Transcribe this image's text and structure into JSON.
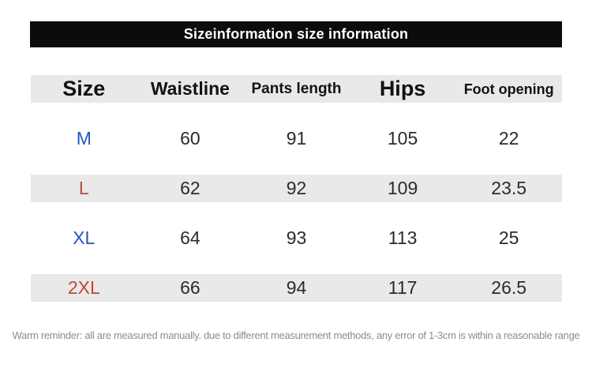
{
  "banner": {
    "title": "Sizeinformation size information"
  },
  "colors": {
    "banner_bg": "#0c0c0c",
    "banner_text": "#ffffff",
    "stripe_bg": "#e9e9e9",
    "header_text": "#121212",
    "value_text": "#2b2b2b",
    "size_blue": "#2553c4",
    "size_red": "#c1463a",
    "reminder_text": "#8d8d8d"
  },
  "table": {
    "headers": [
      "Size",
      "Waistline",
      "Pants length",
      "Hips",
      "Foot opening"
    ],
    "rows": [
      {
        "size": "M",
        "size_color": "blue",
        "values": [
          "60",
          "91",
          "105",
          "22"
        ]
      },
      {
        "size": "L",
        "size_color": "red",
        "values": [
          "62",
          "92",
          "109",
          "23.5"
        ]
      },
      {
        "size": "XL",
        "size_color": "blue",
        "values": [
          "64",
          "93",
          "113",
          "25"
        ]
      },
      {
        "size": "2XL",
        "size_color": "red",
        "values": [
          "66",
          "94",
          "117",
          "26.5"
        ]
      }
    ]
  },
  "footer": {
    "reminder": "Warm reminder: all are measured manually. due to different measurement methods, any error of 1-3cm is within a reasonable range"
  },
  "chart_data": {
    "type": "table",
    "title": "Sizeinformation size information",
    "columns": [
      "Size",
      "Waistline",
      "Pants length",
      "Hips",
      "Foot opening"
    ],
    "rows": [
      [
        "M",
        60,
        91,
        105,
        22
      ],
      [
        "L",
        62,
        92,
        109,
        23.5
      ],
      [
        "XL",
        64,
        93,
        113,
        25
      ],
      [
        "2XL",
        66,
        94,
        117,
        26.5
      ]
    ],
    "note": "Warm reminder: all are measured manually. due to different measurement methods, any error of 1-3cm is within a reasonable range"
  }
}
